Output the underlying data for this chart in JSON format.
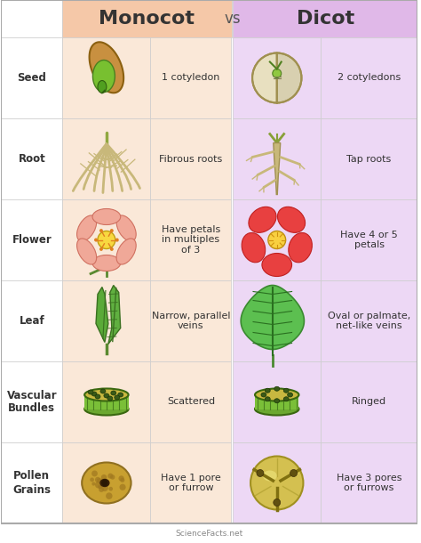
{
  "title_monocot": "Monocot",
  "title_vs": "vs",
  "title_dicot": "Dicot",
  "header_monocot_bg": "#F5C8A8",
  "header_dicot_bg": "#E0B8E8",
  "row_monocot_bg": "#FAE8D8",
  "row_dicot_bg": "#EDD8F5",
  "row_label_bg": "#FFFFFF",
  "border_color": "#CCCCCC",
  "text_color": "#333333",
  "title_monocot_color": "#333333",
  "title_dicot_color": "#333333",
  "rows": [
    "Seed",
    "Root",
    "Flower",
    "Leaf",
    "Vascular\nBundles",
    "Pollen\nGrains"
  ],
  "monocot_desc": [
    "1 cotyledon",
    "Fibrous roots",
    "Have petals\nin multiples\nof 3",
    "Narrow, parallel\nveins",
    "Scattered",
    "Have 1 pore\nor furrow"
  ],
  "dicot_desc": [
    "2 cotyledons",
    "Tap roots",
    "Have 4 or 5\npetals",
    "Oval or palmate,\nnet-like veins",
    "Ringed",
    "Have 3 pores\nor furrows"
  ],
  "fig_width": 4.74,
  "fig_height": 6.1,
  "watermark": "ScienceFacts.net"
}
